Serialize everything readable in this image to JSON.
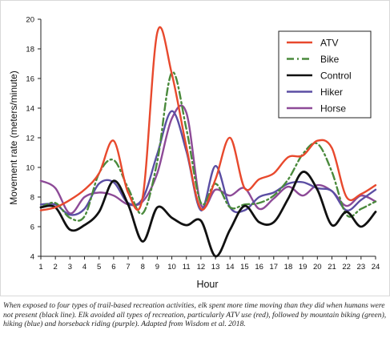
{
  "chart_data": {
    "type": "line",
    "xlabel": "Hour",
    "ylabel": "Movement rate (meters/minute)",
    "x": [
      1,
      2,
      3,
      4,
      5,
      6,
      7,
      8,
      9,
      10,
      11,
      12,
      13,
      14,
      15,
      16,
      17,
      18,
      19,
      20,
      21,
      22,
      23,
      24
    ],
    "x_ticks": [
      "1",
      "2",
      "3",
      "4",
      "5",
      "6",
      "7",
      "8",
      "9",
      "10",
      "11",
      "12",
      "13",
      "14",
      "15",
      "16",
      "17",
      "18",
      "19",
      "20",
      "21",
      "22",
      "23",
      "24"
    ],
    "xlim": [
      1,
      24
    ],
    "ylim": [
      4,
      20
    ],
    "y_ticks": [
      "4",
      "6",
      "8",
      "10",
      "12",
      "14",
      "16",
      "18",
      "20"
    ],
    "grid": false,
    "legend_position": "top-right",
    "series": [
      {
        "name": "ATV",
        "color": "#e8492d",
        "dash": "solid",
        "values": [
          7.1,
          7.3,
          7.8,
          8.5,
          9.6,
          11.8,
          8.3,
          8.0,
          19.1,
          16.3,
          11.4,
          7.2,
          9.2,
          12.0,
          8.6,
          9.2,
          9.6,
          10.7,
          10.8,
          11.8,
          11.3,
          8.0,
          8.2,
          8.8
        ]
      },
      {
        "name": "Bike",
        "color": "#4a8a3c",
        "dash": "dashed",
        "values": [
          7.3,
          7.6,
          6.6,
          6.7,
          9.6,
          10.5,
          8.6,
          6.9,
          10.4,
          16.4,
          12.6,
          7.6,
          8.9,
          7.3,
          7.5,
          7.6,
          8.1,
          9.2,
          10.9,
          11.6,
          9.7,
          6.8,
          7.2,
          7.7
        ]
      },
      {
        "name": "Control",
        "color": "#111111",
        "dash": "solid",
        "values": [
          7.3,
          7.3,
          5.8,
          6.1,
          7.0,
          9.1,
          7.5,
          5.0,
          7.3,
          6.6,
          6.1,
          6.4,
          4.0,
          5.8,
          7.4,
          6.3,
          6.3,
          7.9,
          9.7,
          8.5,
          6.1,
          7.0,
          6.0,
          7.0
        ]
      },
      {
        "name": "Hiker",
        "color": "#5b4ea3",
        "dash": "solid",
        "values": [
          7.5,
          7.5,
          6.8,
          7.2,
          8.9,
          9.0,
          7.6,
          7.9,
          10.9,
          13.8,
          11.1,
          7.1,
          10.1,
          7.3,
          7.1,
          8.0,
          8.3,
          8.9,
          9.0,
          8.6,
          8.4,
          7.1,
          7.8,
          8.5
        ]
      },
      {
        "name": "Horse",
        "color": "#8d4a97",
        "dash": "solid",
        "values": [
          9.1,
          8.6,
          6.9,
          8.0,
          8.3,
          8.1,
          7.5,
          7.7,
          9.6,
          13.3,
          13.7,
          7.5,
          8.5,
          8.1,
          8.6,
          7.2,
          7.9,
          8.7,
          8.1,
          8.8,
          8.4,
          7.4,
          8.1,
          7.7
        ]
      }
    ]
  },
  "caption": "When exposed to four types of trail-based recreation activities, elk spent more time moving than they did when humans were not present (black line). Elk avoided all types of recreation, particularly ATV use (red), followed by mountain biking (green), hiking (blue) and horseback riding (purple). Adapted from Wisdom et al. 2018."
}
